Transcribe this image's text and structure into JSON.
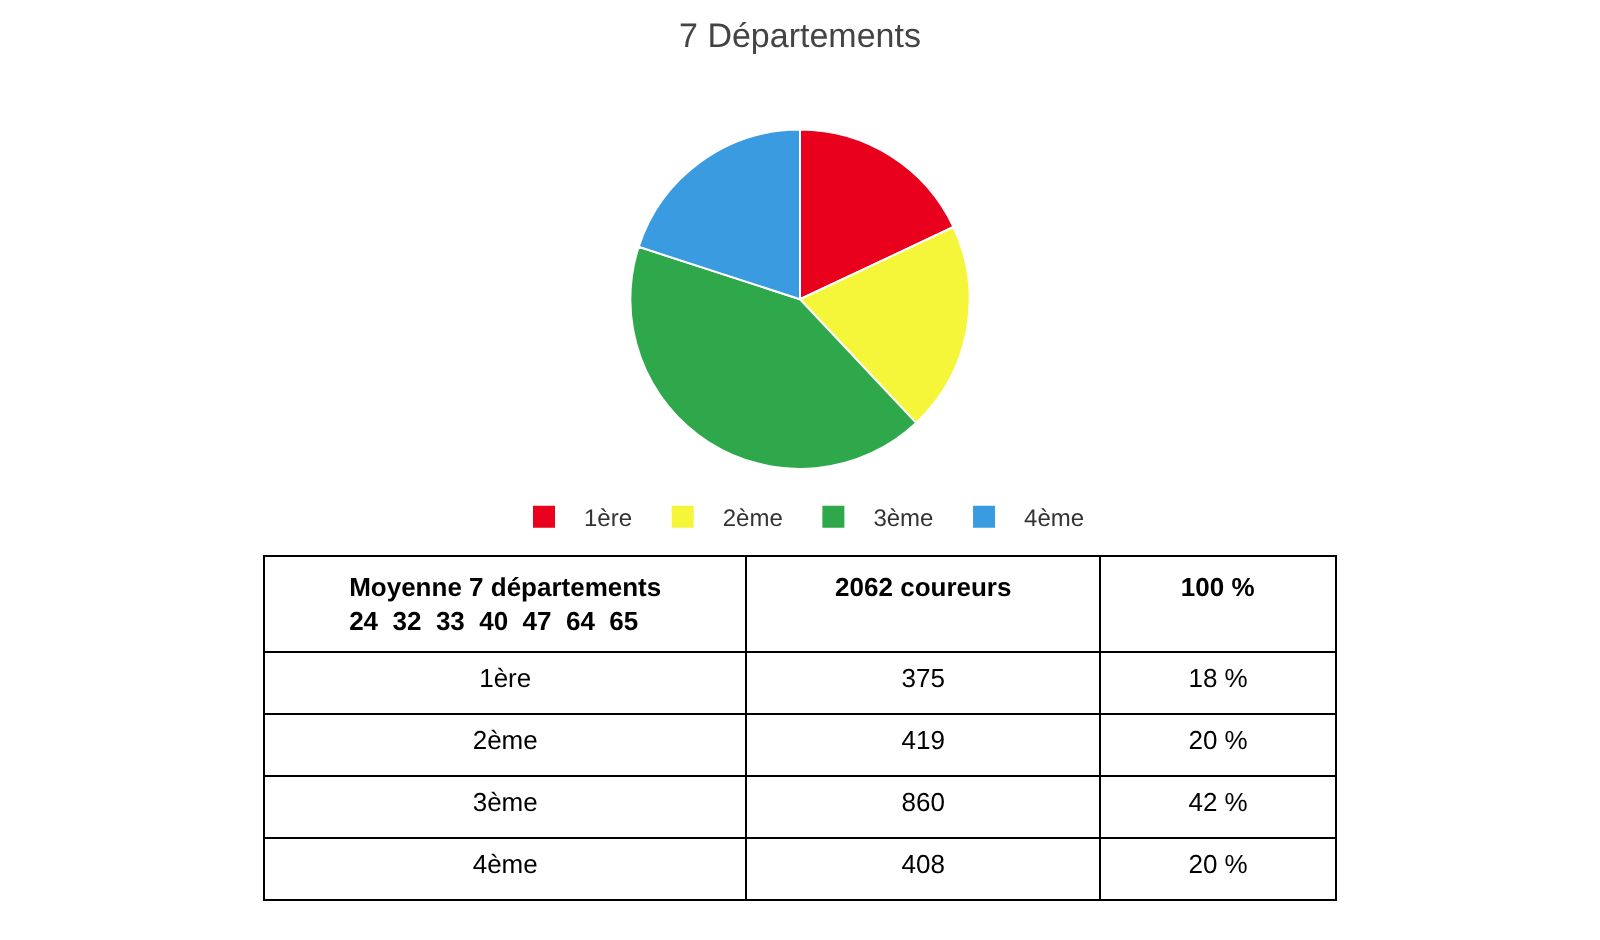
{
  "chart_data": {
    "type": "pie",
    "title": "7 Départements",
    "categories": [
      "1ère",
      "2ème",
      "3ème",
      "4ème"
    ],
    "values": [
      18,
      20,
      42,
      20
    ],
    "colors": [
      "#e8001c",
      "#f5f53a",
      "#2ea84a",
      "#3a9be0"
    ],
    "legend": "bottom",
    "annotations": [
      "Moyenne 7 départements\n24  32  33  40  47  64  65",
      "2062 coureurs",
      "100 %",
      "375",
      "419",
      "860",
      "408",
      "18 %",
      "20 %",
      "42 %",
      "20 %"
    ]
  }
}
